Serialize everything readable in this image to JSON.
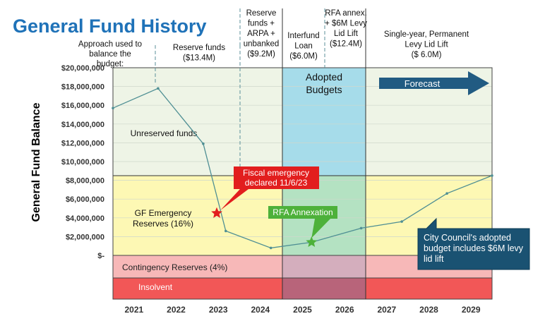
{
  "chart_data": {
    "type": "line",
    "title": "General Fund History",
    "ylabel": "General Fund Balance",
    "xlabel": "",
    "x_ticks": [
      "2021",
      "2022",
      "2023",
      "2024",
      "2025",
      "2026",
      "2027",
      "2028",
      "2029"
    ],
    "y_ticks": [
      "$20,000,000",
      "$18,000,000",
      "$16,000,000",
      "$14,000,000",
      "$12,000,000",
      "$10,000,000",
      "$8,000,000",
      "$6,000,000",
      "$4,000,000",
      "$2,000,000",
      "$-"
    ],
    "ylim": [
      0,
      20000000
    ],
    "grid": true,
    "series": [
      {
        "points": [
          {
            "x": 2021.0,
            "y": 15700000
          },
          {
            "x": 2022.0,
            "y": 17800000
          },
          {
            "x": 2023.0,
            "y": 11900000
          },
          {
            "x": 2023.5,
            "y": 2600000
          },
          {
            "x": 2024.5,
            "y": 800000
          },
          {
            "x": 2025.4,
            "y": 1400000
          },
          {
            "x": 2026.5,
            "y": 2900000
          },
          {
            "x": 2027.4,
            "y": 3600000
          },
          {
            "x": 2028.4,
            "y": 6600000
          },
          {
            "x": 2029.4,
            "y": 8500000
          }
        ],
        "color": "#4f8f94"
      }
    ],
    "phase_header": "Approach used to balance the budget:",
    "phases": [
      {
        "label": "Reserve funds ($13.4M)"
      },
      {
        "label": "Reserve funds + ARPA + unbanked ($9.2M)"
      },
      {
        "label": "Interfund Loan ($6.0M)"
      },
      {
        "label": "RFA annex. + $6M Levy Lid Lift ($12.4M)"
      },
      {
        "label": "Single-year, Permanent Levy Lid Lift ($ 6.0M)"
      }
    ],
    "zones": [
      {
        "label": "Unreserved funds",
        "from": 8500000,
        "to": 20000000,
        "color": "#eef4e6"
      },
      {
        "label": "GF Emergency Reserves (16%)",
        "from": 0,
        "to": 8500000,
        "color": "#fdf8b4"
      },
      {
        "label": "Contingency Reserves (4%)",
        "color": "#f7b8b8"
      },
      {
        "label": "Insolvent",
        "color": "#f25757"
      }
    ],
    "adopted_budgets": {
      "label": "Adopted Budgets",
      "color": "#a6dcea"
    },
    "forecast": {
      "label": "Forecast",
      "color": "#215b82"
    },
    "annotations": [
      {
        "label": "Fiscal emergency declared 11/6/23",
        "x": 2023.3,
        "y": 4500000,
        "marker": "star",
        "color": "#e21e1e"
      },
      {
        "label": "RFA Annexation",
        "x": 2025.4,
        "y": 1400000,
        "marker": "star",
        "color": "#4db13a"
      },
      {
        "label": "City Council's adopted budget includes $6M levy lid lift",
        "color": "#1a5272"
      }
    ]
  }
}
